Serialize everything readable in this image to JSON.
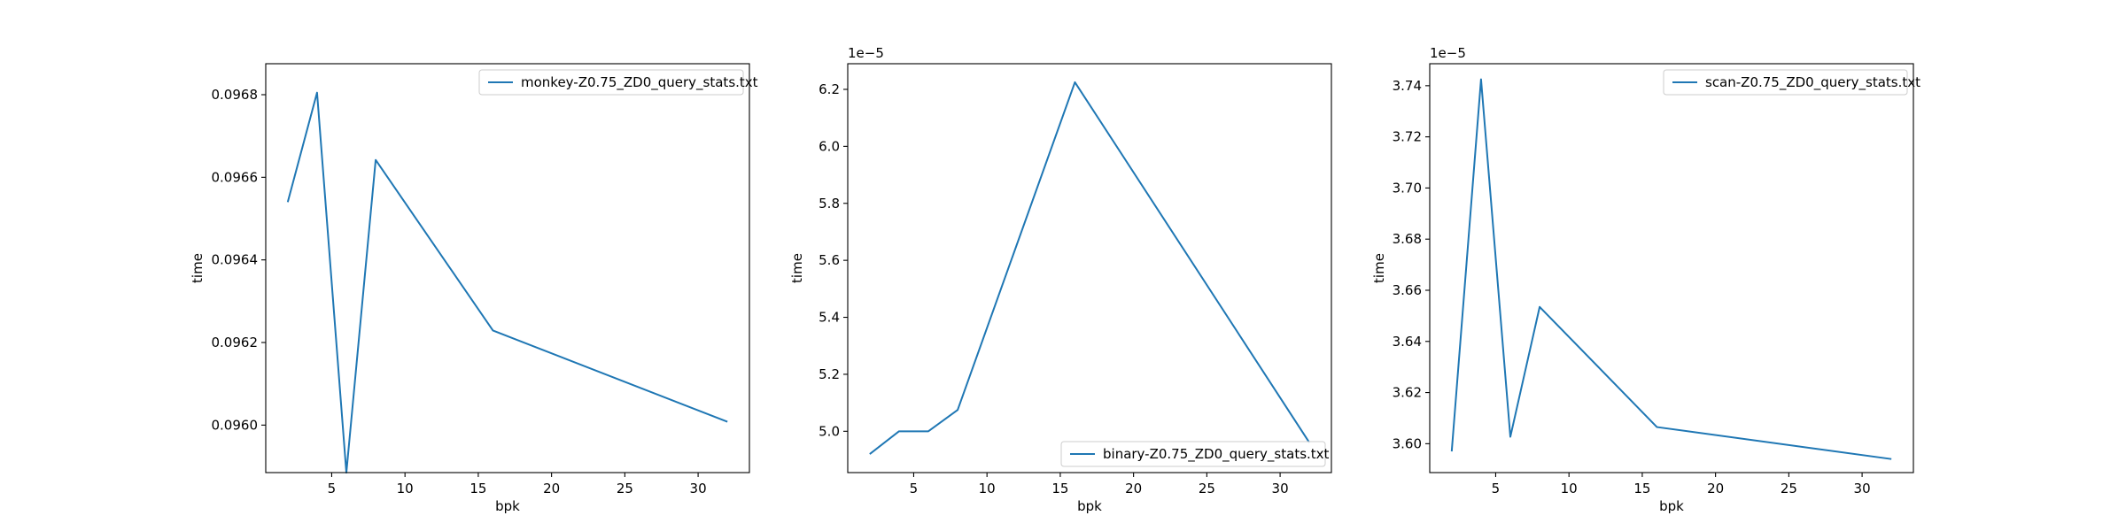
{
  "chart_data": [
    {
      "type": "line",
      "xlabel": "bpk",
      "ylabel": "time",
      "offset_text": "",
      "xlim": [
        0.5,
        33.5
      ],
      "ylim": [
        0.095885,
        0.096875
      ],
      "xticks": [
        5,
        10,
        15,
        20,
        25,
        30
      ],
      "yticks": [
        0.096,
        0.0962,
        0.0964,
        0.0966,
        0.0968
      ],
      "ytick_labels": [
        "0.0960",
        "0.0962",
        "0.0964",
        "0.0966",
        "0.0968"
      ],
      "legend_position": "upper right",
      "series": [
        {
          "name": "monkey-Z0.75_ZD0_query_stats.txt",
          "color": "#1f77b4",
          "x": [
            2,
            4,
            6,
            8,
            16,
            32
          ],
          "y": [
            0.09654,
            0.096805,
            0.095885,
            0.096642,
            0.096229,
            0.096008
          ]
        }
      ]
    },
    {
      "type": "line",
      "xlabel": "bpk",
      "ylabel": "time",
      "offset_text": "1e−5",
      "xlim": [
        0.5,
        33.5
      ],
      "ylim": [
        4.855,
        6.29
      ],
      "xticks": [
        5,
        10,
        15,
        20,
        25,
        30
      ],
      "yticks": [
        5.0,
        5.2,
        5.4,
        5.6,
        5.8,
        6.0,
        6.2
      ],
      "ytick_labels": [
        "5.0",
        "5.2",
        "5.4",
        "5.6",
        "5.8",
        "6.0",
        "6.2"
      ],
      "legend_position": "lower right",
      "series": [
        {
          "name": "binary-Z0.75_ZD0_query_stats.txt",
          "color": "#1f77b4",
          "x": [
            2,
            4,
            6,
            8,
            16,
            32
          ],
          "y": [
            4.92,
            5.0,
            5.0,
            5.075,
            6.225,
            4.96
          ]
        }
      ]
    },
    {
      "type": "line",
      "xlabel": "bpk",
      "ylabel": "time",
      "offset_text": "1e−5",
      "xlim": [
        0.5,
        33.5
      ],
      "ylim": [
        3.5887,
        3.7486
      ],
      "xticks": [
        5,
        10,
        15,
        20,
        25,
        30
      ],
      "yticks": [
        3.6,
        3.62,
        3.64,
        3.66,
        3.68,
        3.7,
        3.72,
        3.74
      ],
      "ytick_labels": [
        "3.60",
        "3.62",
        "3.64",
        "3.66",
        "3.68",
        "3.70",
        "3.72",
        "3.74"
      ],
      "legend_position": "upper right",
      "series": [
        {
          "name": "scan-Z0.75_ZD0_query_stats.txt",
          "color": "#1f77b4",
          "x": [
            2,
            4,
            6,
            8,
            16,
            32
          ],
          "y": [
            3.597,
            3.7425,
            3.6027,
            3.6535,
            3.6065,
            3.594
          ]
        }
      ]
    }
  ]
}
